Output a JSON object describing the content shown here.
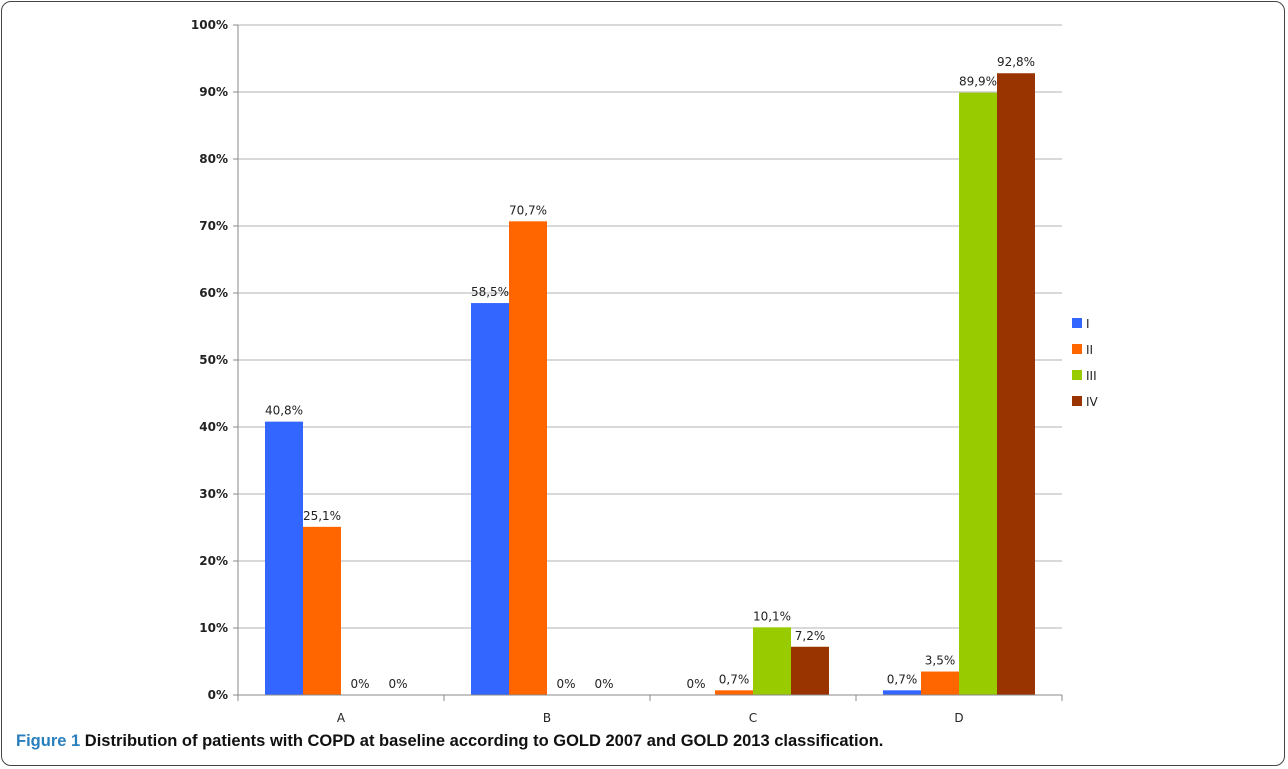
{
  "chart_data": {
    "type": "bar",
    "categories": [
      "A",
      "B",
      "C",
      "D"
    ],
    "series": [
      {
        "name": "I",
        "color": "#3366ff",
        "values": [
          40.8,
          58.5,
          0,
          0.7
        ],
        "labels": [
          "40,8%",
          "58,5%",
          "0%",
          "0,7%"
        ]
      },
      {
        "name": "II",
        "color": "#ff6600",
        "values": [
          25.1,
          70.7,
          0.7,
          3.5
        ],
        "labels": [
          "25,1%",
          "70,7%",
          "0,7%",
          "3,5%"
        ]
      },
      {
        "name": "III",
        "color": "#99cc00",
        "values": [
          0,
          0,
          10.1,
          89.9
        ],
        "labels": [
          "0%",
          "0%",
          "10,1%",
          "89,9%"
        ]
      },
      {
        "name": "IV",
        "color": "#993300",
        "values": [
          0,
          0,
          7.2,
          92.8
        ],
        "labels": [
          "0%",
          "0%",
          "7,2%",
          "92,8%"
        ]
      }
    ],
    "yticks": [
      "0%",
      "10%",
      "20%",
      "30%",
      "40%",
      "50%",
      "60%",
      "70%",
      "80%",
      "90%",
      "100%"
    ],
    "ylim": [
      0,
      100
    ],
    "grid": true,
    "legend": "right"
  },
  "caption": {
    "figure_label": "Figure 1",
    "text": "Distribution of patients with COPD at baseline according to GOLD 2007 and GOLD 2013 classification."
  }
}
